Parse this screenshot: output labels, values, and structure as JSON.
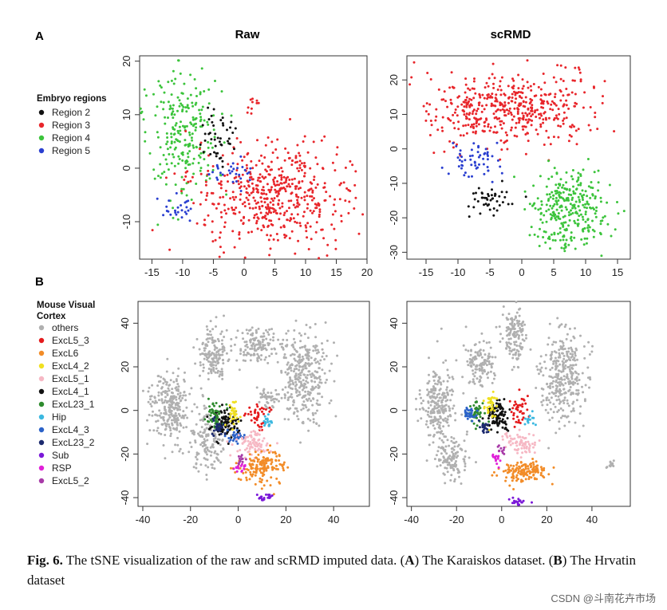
{
  "panel_A": {
    "letter": "A"
  },
  "panel_B": {
    "letter": "B"
  },
  "legend_A": {
    "title": "Embryo regions",
    "items": [
      {
        "label": "Region 2",
        "color": "#111111"
      },
      {
        "label": "Region 3",
        "color": "#e8262b"
      },
      {
        "label": "Region 4",
        "color": "#3cc43c"
      },
      {
        "label": "Region 5",
        "color": "#2a3fd0"
      }
    ]
  },
  "legend_B": {
    "title_line1": "Mouse Visual",
    "title_line2": "Cortex",
    "items": [
      {
        "label": "others",
        "color": "#b0b0b0"
      },
      {
        "label": "ExcL5_3",
        "color": "#e41a1c"
      },
      {
        "label": "ExcL6",
        "color": "#f28c28"
      },
      {
        "label": "ExcL4_2",
        "color": "#f0e020"
      },
      {
        "label": "ExcL5_1",
        "color": "#f6b8c4"
      },
      {
        "label": "ExcL4_1",
        "color": "#111111"
      },
      {
        "label": "ExcL23_1",
        "color": "#2e8b2e"
      },
      {
        "label": "Hip",
        "color": "#3bb8e0"
      },
      {
        "label": "ExcL4_3",
        "color": "#2b62c8"
      },
      {
        "label": "ExcL23_2",
        "color": "#1c2a6e"
      },
      {
        "label": "Sub",
        "color": "#7a18d8"
      },
      {
        "label": "RSP",
        "color": "#e020d8"
      },
      {
        "label": "ExcL5_2",
        "color": "#a83ba8"
      }
    ]
  },
  "chart_data": [
    {
      "id": "A_raw",
      "type": "scatter",
      "title": "Raw",
      "xlim": [
        -17,
        20
      ],
      "ylim": [
        -17,
        21
      ],
      "xticks": [
        -15,
        -10,
        -5,
        0,
        5,
        10,
        15,
        20
      ],
      "yticks": [
        -10,
        0,
        10,
        20
      ],
      "clusters": [
        {
          "label": "Region 4",
          "color": "#3cc43c",
          "n": 240,
          "cx": -10,
          "cy": 7,
          "sx": 3.0,
          "sy": 5.5,
          "seed": 11
        },
        {
          "label": "Region 3",
          "color": "#e8262b",
          "n": 520,
          "cx": 5,
          "cy": -5,
          "sx": 6.0,
          "sy": 5.0,
          "seed": 12
        },
        {
          "label": "Region 3",
          "color": "#e8262b",
          "n": 10,
          "cx": 1.5,
          "cy": 12,
          "sx": 0.8,
          "sy": 1.0,
          "seed": 13
        },
        {
          "label": "Region 2",
          "color": "#111111",
          "n": 45,
          "cx": -4.5,
          "cy": 6,
          "sx": 1.5,
          "sy": 2.5,
          "seed": 14
        },
        {
          "label": "Region 5",
          "color": "#2a3fd0",
          "n": 30,
          "cx": -2,
          "cy": -1,
          "sx": 1.8,
          "sy": 1.5,
          "seed": 15
        },
        {
          "label": "Region 5",
          "color": "#2a3fd0",
          "n": 25,
          "cx": -11,
          "cy": -7.5,
          "sx": 1.5,
          "sy": 1.2,
          "seed": 16
        }
      ]
    },
    {
      "id": "A_scrmd",
      "type": "scatter",
      "title": "scRMD",
      "xlim": [
        -18,
        17
      ],
      "ylim": [
        -32,
        27
      ],
      "xticks": [
        -15,
        -10,
        -5,
        0,
        5,
        10,
        15
      ],
      "yticks": [
        -30,
        -20,
        -10,
        0,
        10,
        20
      ],
      "clusters": [
        {
          "label": "Region 3",
          "color": "#e8262b",
          "n": 480,
          "cx": -2,
          "cy": 12,
          "sx": 6.5,
          "sy": 5.5,
          "seed": 21
        },
        {
          "label": "Region 4",
          "color": "#3cc43c",
          "n": 300,
          "cx": 8,
          "cy": -17,
          "sx": 3.0,
          "sy": 6.0,
          "seed": 22
        },
        {
          "label": "Region 5",
          "color": "#2a3fd0",
          "n": 55,
          "cx": -7.5,
          "cy": -3,
          "sx": 2.2,
          "sy": 2.2,
          "seed": 23
        },
        {
          "label": "Region 2",
          "color": "#111111",
          "n": 45,
          "cx": -5,
          "cy": -14,
          "sx": 1.8,
          "sy": 2.2,
          "seed": 24
        }
      ]
    },
    {
      "id": "B_raw",
      "type": "scatter",
      "title": "",
      "xlim": [
        -42,
        55
      ],
      "ylim": [
        -44,
        50
      ],
      "xticks": [
        -40,
        -20,
        0,
        20,
        40
      ],
      "yticks": [
        -40,
        -20,
        0,
        20,
        40
      ],
      "clusters": [
        {
          "label": "others",
          "color": "#b0b0b0",
          "n": 260,
          "cx": -28,
          "cy": 2,
          "sx": 4.0,
          "sy": 8.0,
          "seed": 31
        },
        {
          "label": "others",
          "color": "#b0b0b0",
          "n": 140,
          "cx": -12,
          "cy": -15,
          "sx": 4.0,
          "sy": 7.0,
          "seed": 32
        },
        {
          "label": "others",
          "color": "#b0b0b0",
          "n": 150,
          "cx": -10,
          "cy": 25,
          "sx": 3.5,
          "sy": 6.0,
          "seed": 33
        },
        {
          "label": "others",
          "color": "#b0b0b0",
          "n": 140,
          "cx": 8,
          "cy": 30,
          "sx": 5.0,
          "sy": 4.0,
          "seed": 34
        },
        {
          "label": "others",
          "color": "#b0b0b0",
          "n": 320,
          "cx": 28,
          "cy": 15,
          "sx": 5.0,
          "sy": 10.0,
          "seed": 35
        },
        {
          "label": "others",
          "color": "#b0b0b0",
          "n": 40,
          "cx": 12,
          "cy": 5,
          "sx": 2.5,
          "sy": 2.5,
          "seed": 36
        },
        {
          "label": "ExcL4_1",
          "color": "#111111",
          "n": 110,
          "cx": -5,
          "cy": -6,
          "sx": 2.8,
          "sy": 3.5,
          "seed": 37
        },
        {
          "label": "ExcL23_1",
          "color": "#2e8b2e",
          "n": 50,
          "cx": -10,
          "cy": -2,
          "sx": 1.8,
          "sy": 3.0,
          "seed": 38
        },
        {
          "label": "ExcL23_2",
          "color": "#1c2a6e",
          "n": 30,
          "cx": -8,
          "cy": -8,
          "sx": 1.5,
          "sy": 2.0,
          "seed": 39
        },
        {
          "label": "ExcL4_3",
          "color": "#2b62c8",
          "n": 30,
          "cx": -1,
          "cy": -12,
          "sx": 2.0,
          "sy": 1.8,
          "seed": 40
        },
        {
          "label": "ExcL4_2",
          "color": "#f0e020",
          "n": 30,
          "cx": -2,
          "cy": -3,
          "sx": 1.5,
          "sy": 2.5,
          "seed": 41
        },
        {
          "label": "ExcL5_3",
          "color": "#e41a1c",
          "n": 40,
          "cx": 8,
          "cy": -3,
          "sx": 2.5,
          "sy": 2.5,
          "seed": 42
        },
        {
          "label": "Hip",
          "color": "#3bb8e0",
          "n": 18,
          "cx": 12,
          "cy": -5,
          "sx": 1.0,
          "sy": 1.5,
          "seed": 43
        },
        {
          "label": "ExcL5_1",
          "color": "#f6b8c4",
          "n": 80,
          "cx": 6,
          "cy": -15,
          "sx": 4.0,
          "sy": 3.0,
          "seed": 44
        },
        {
          "label": "ExcL6",
          "color": "#f28c28",
          "n": 150,
          "cx": 10,
          "cy": -26,
          "sx": 5.0,
          "sy": 3.5,
          "seed": 45
        },
        {
          "label": "RSP",
          "color": "#e020d8",
          "n": 15,
          "cx": 0,
          "cy": -26,
          "sx": 1.2,
          "sy": 1.2,
          "seed": 46
        },
        {
          "label": "ExcL5_2",
          "color": "#a83ba8",
          "n": 12,
          "cx": 2,
          "cy": -22,
          "sx": 1.0,
          "sy": 1.2,
          "seed": 47
        },
        {
          "label": "Sub",
          "color": "#7a18d8",
          "n": 22,
          "cx": 12,
          "cy": -40,
          "sx": 1.6,
          "sy": 0.8,
          "seed": 48
        }
      ]
    },
    {
      "id": "B_scrmd",
      "type": "scatter",
      "title": "",
      "xlim": [
        -42,
        57
      ],
      "ylim": [
        -44,
        50
      ],
      "xticks": [
        -40,
        -20,
        0,
        20,
        40
      ],
      "yticks": [
        -40,
        -20,
        0,
        20,
        40
      ],
      "clusters": [
        {
          "label": "others",
          "color": "#b0b0b0",
          "n": 240,
          "cx": -28,
          "cy": 3,
          "sx": 4.0,
          "sy": 8.0,
          "seed": 51
        },
        {
          "label": "others",
          "color": "#b0b0b0",
          "n": 120,
          "cx": -22,
          "cy": -22,
          "sx": 4.0,
          "sy": 5.0,
          "seed": 52
        },
        {
          "label": "others",
          "color": "#b0b0b0",
          "n": 130,
          "cx": -10,
          "cy": 22,
          "sx": 3.5,
          "sy": 6.0,
          "seed": 53
        },
        {
          "label": "others",
          "color": "#b0b0b0",
          "n": 140,
          "cx": 6,
          "cy": 35,
          "sx": 2.5,
          "sy": 7.0,
          "seed": 54
        },
        {
          "label": "others",
          "color": "#b0b0b0",
          "n": 320,
          "cx": 27,
          "cy": 15,
          "sx": 5.0,
          "sy": 11.0,
          "seed": 55
        },
        {
          "label": "others",
          "color": "#b0b0b0",
          "n": 12,
          "cx": 48,
          "cy": -25,
          "sx": 1.0,
          "sy": 1.0,
          "seed": 56
        },
        {
          "label": "ExcL4_1",
          "color": "#111111",
          "n": 100,
          "cx": -2,
          "cy": -2,
          "sx": 2.0,
          "sy": 4.0,
          "seed": 57
        },
        {
          "label": "ExcL23_1",
          "color": "#2e8b2e",
          "n": 50,
          "cx": -11,
          "cy": -1,
          "sx": 2.0,
          "sy": 3.0,
          "seed": 58
        },
        {
          "label": "ExcL4_3",
          "color": "#2b62c8",
          "n": 30,
          "cx": -14,
          "cy": -2,
          "sx": 1.4,
          "sy": 2.0,
          "seed": 59
        },
        {
          "label": "ExcL4_2",
          "color": "#f0e020",
          "n": 35,
          "cx": -5,
          "cy": 2,
          "sx": 1.5,
          "sy": 3.5,
          "seed": 60
        },
        {
          "label": "ExcL5_3",
          "color": "#e41a1c",
          "n": 40,
          "cx": 8,
          "cy": 1,
          "sx": 2.2,
          "sy": 3.0,
          "seed": 61
        },
        {
          "label": "Hip",
          "color": "#3bb8e0",
          "n": 15,
          "cx": 12,
          "cy": -4,
          "sx": 1.0,
          "sy": 1.2,
          "seed": 62
        },
        {
          "label": "ExcL23_2",
          "color": "#1c2a6e",
          "n": 20,
          "cx": -8,
          "cy": -8,
          "sx": 1.5,
          "sy": 1.5,
          "seed": 63
        },
        {
          "label": "ExcL5_1",
          "color": "#f6b8c4",
          "n": 70,
          "cx": 8,
          "cy": -15,
          "sx": 4.0,
          "sy": 2.5,
          "seed": 64
        },
        {
          "label": "ExcL6",
          "color": "#f28c28",
          "n": 140,
          "cx": 10,
          "cy": -28,
          "sx": 5.0,
          "sy": 2.5,
          "seed": 65
        },
        {
          "label": "RSP",
          "color": "#e020d8",
          "n": 15,
          "cx": -2,
          "cy": -22,
          "sx": 1.2,
          "sy": 1.5,
          "seed": 66
        },
        {
          "label": "ExcL5_2",
          "color": "#a83ba8",
          "n": 10,
          "cx": -1,
          "cy": -18,
          "sx": 1.0,
          "sy": 1.2,
          "seed": 67
        },
        {
          "label": "Sub",
          "color": "#7a18d8",
          "n": 22,
          "cx": 7,
          "cy": -42,
          "sx": 1.5,
          "sy": 0.8,
          "seed": 68
        }
      ]
    }
  ],
  "caption": {
    "fig_label": "Fig. 6.",
    "part1": " The tSNE visualization of the raw and scRMD imputed data. (",
    "a": "A",
    "part2": ") The Karaiskos dataset. (",
    "b": "B",
    "part3": ") The Hrvatin dataset"
  },
  "watermark": "CSDN @斗南花卉市场"
}
